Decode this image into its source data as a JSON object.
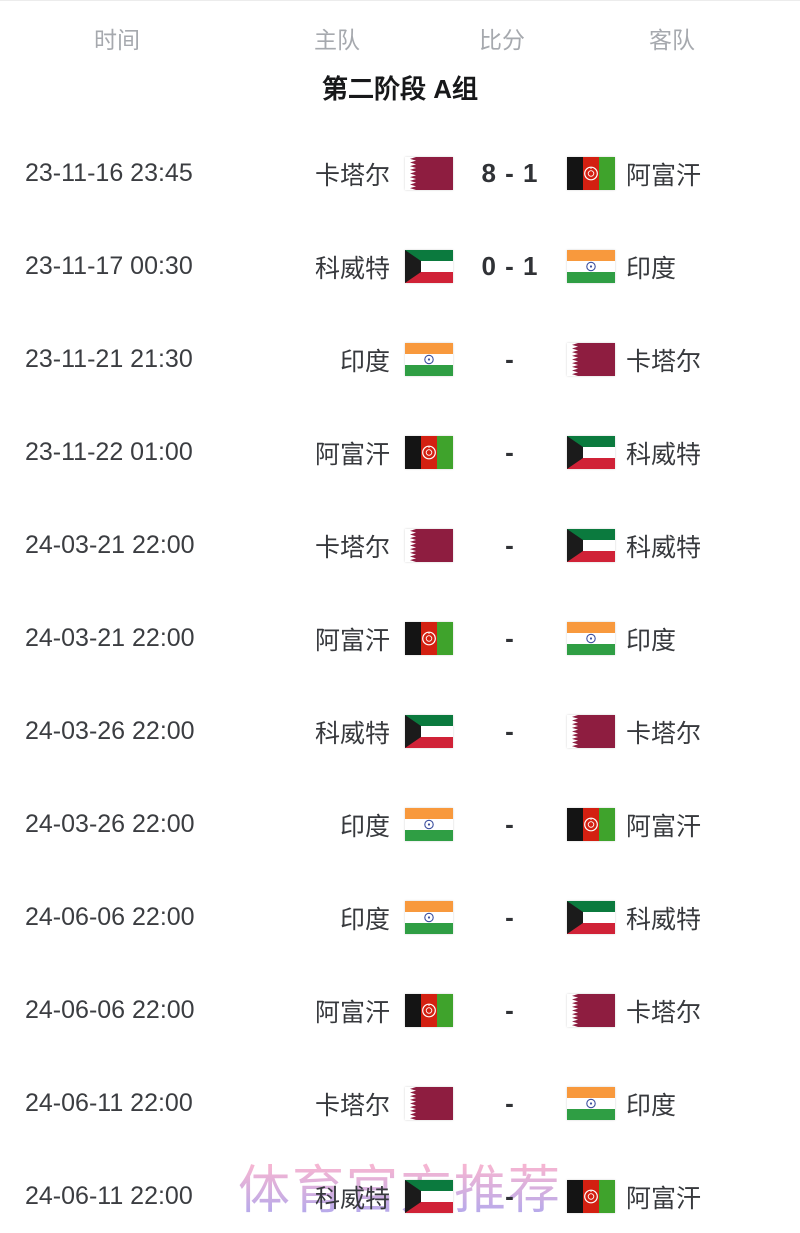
{
  "table": {
    "columns": [
      {
        "key": "time",
        "label": "时间"
      },
      {
        "key": "home",
        "label": "主队"
      },
      {
        "key": "score",
        "label": "比分"
      },
      {
        "key": "away",
        "label": "客队"
      }
    ],
    "group_title": "第二阶段 A组"
  },
  "matches": [
    {
      "time": "23-11-16 23:45",
      "home": {
        "name": "卡塔尔",
        "flag": "QAT"
      },
      "score": "8 - 1",
      "away": {
        "name": "阿富汗",
        "flag": "AFG"
      }
    },
    {
      "time": "23-11-17 00:30",
      "home": {
        "name": "科威特",
        "flag": "KUW"
      },
      "score": "0 - 1",
      "away": {
        "name": "印度",
        "flag": "IND"
      }
    },
    {
      "time": "23-11-21 21:30",
      "home": {
        "name": "印度",
        "flag": "IND"
      },
      "score": "-",
      "away": {
        "name": "卡塔尔",
        "flag": "QAT"
      }
    },
    {
      "time": "23-11-22 01:00",
      "home": {
        "name": "阿富汗",
        "flag": "AFG"
      },
      "score": "-",
      "away": {
        "name": "科威特",
        "flag": "KUW"
      }
    },
    {
      "time": "24-03-21 22:00",
      "home": {
        "name": "卡塔尔",
        "flag": "QAT"
      },
      "score": "-",
      "away": {
        "name": "科威特",
        "flag": "KUW"
      }
    },
    {
      "time": "24-03-21 22:00",
      "home": {
        "name": "阿富汗",
        "flag": "AFG"
      },
      "score": "-",
      "away": {
        "name": "印度",
        "flag": "IND"
      }
    },
    {
      "time": "24-03-26 22:00",
      "home": {
        "name": "科威特",
        "flag": "KUW"
      },
      "score": "-",
      "away": {
        "name": "卡塔尔",
        "flag": "QAT"
      }
    },
    {
      "time": "24-03-26 22:00",
      "home": {
        "name": "印度",
        "flag": "IND"
      },
      "score": "-",
      "away": {
        "name": "阿富汗",
        "flag": "AFG"
      }
    },
    {
      "time": "24-06-06 22:00",
      "home": {
        "name": "印度",
        "flag": "IND"
      },
      "score": "-",
      "away": {
        "name": "科威特",
        "flag": "KUW"
      }
    },
    {
      "time": "24-06-06 22:00",
      "home": {
        "name": "阿富汗",
        "flag": "AFG"
      },
      "score": "-",
      "away": {
        "name": "卡塔尔",
        "flag": "QAT"
      }
    },
    {
      "time": "24-06-11 22:00",
      "home": {
        "name": "卡塔尔",
        "flag": "QAT"
      },
      "score": "-",
      "away": {
        "name": "印度",
        "flag": "IND"
      }
    },
    {
      "time": "24-06-11 22:00",
      "home": {
        "name": "科威特",
        "flag": "KUW"
      },
      "score": "-",
      "away": {
        "name": "阿富汗",
        "flag": "AFG"
      }
    }
  ],
  "flags": {
    "QAT": {
      "name": "Qatar",
      "type": "qatar",
      "maroon": "#8e1d40",
      "white": "#ffffff"
    },
    "KUW": {
      "name": "Kuwait",
      "type": "kuwait",
      "green": "#0b7a3e",
      "white": "#ffffff",
      "red": "#d02237",
      "black": "#1b1b1b"
    },
    "IND": {
      "name": "India",
      "type": "india",
      "saffron": "#f8993d",
      "white": "#ffffff",
      "green": "#2f9e44",
      "navy": "#3c4f9e"
    },
    "AFG": {
      "name": "Afghanistan",
      "type": "afghanistan",
      "black": "#141414",
      "red": "#d32011",
      "green": "#3fa32c",
      "emblem": "#ffffff"
    }
  },
  "watermark": {
    "text": "体育官方推荐",
    "color_top": "#f5b5d2",
    "color_bottom": "#b3a9ec"
  },
  "colors": {
    "header_text": "#a6a9ae",
    "body_text": "#3b3d41",
    "title_text": "#17181a",
    "score_text": "#303236",
    "background": "#ffffff"
  }
}
